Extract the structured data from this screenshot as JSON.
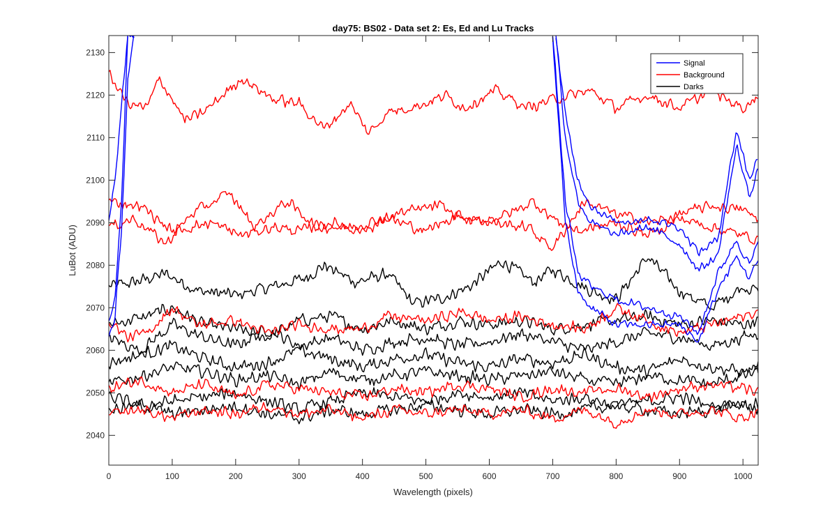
{
  "chart_data": {
    "type": "line",
    "title": "day75: BS02 - Data set 2: Es, Ed and Lu Tracks",
    "xlabel": "Wavelength (pixels)",
    "ylabel": "LuBot (ADU)",
    "xlim": [
      0,
      1024
    ],
    "ylim": [
      2033,
      2134
    ],
    "xticks": [
      0,
      100,
      200,
      300,
      400,
      500,
      600,
      700,
      800,
      900,
      1000
    ],
    "yticks": [
      2040,
      2050,
      2060,
      2070,
      2080,
      2090,
      2100,
      2110,
      2120,
      2130
    ],
    "grid": false,
    "legend_position": "top-right",
    "legend": [
      {
        "name": "Signal",
        "color": "#0000ff"
      },
      {
        "name": "Background",
        "color": "#ff0000"
      },
      {
        "name": "Darks",
        "color": "#000000"
      }
    ],
    "noise_amplitude": {
      "Background": 1.6,
      "Darks": 1.8,
      "Signal": 1.2
    },
    "series": [
      {
        "group": "Background",
        "color": "#ff0000",
        "x": [
          0,
          30,
          60,
          80,
          120,
          150,
          210,
          260,
          300,
          340,
          380,
          410,
          440,
          500,
          530,
          560,
          610,
          660,
          700,
          760,
          800,
          850,
          900,
          950,
          1000,
          1024
        ],
        "y": [
          2125,
          2118,
          2117,
          2124,
          2114,
          2116,
          2124,
          2119,
          2118,
          2112,
          2118,
          2111,
          2116,
          2118,
          2120,
          2117,
          2121,
          2117,
          2119,
          2121,
          2117,
          2120,
          2117,
          2121,
          2117,
          2120
        ]
      },
      {
        "group": "Background",
        "color": "#ff0000",
        "x": [
          0,
          40,
          90,
          130,
          190,
          230,
          280,
          330,
          380,
          440,
          500,
          550,
          600,
          660,
          700,
          750,
          800,
          860,
          900,
          950,
          1000,
          1024
        ],
        "y": [
          2089,
          2091,
          2085,
          2092,
          2097,
          2089,
          2095,
          2089,
          2089,
          2091,
          2088,
          2092,
          2090,
          2089,
          2084,
          2095,
          2092,
          2090,
          2092,
          2094,
          2093,
          2091
        ]
      },
      {
        "group": "Background",
        "color": "#ff0000",
        "x": [
          0,
          50,
          100,
          160,
          210,
          260,
          300,
          350,
          400,
          450,
          520,
          570,
          630,
          670,
          700,
          740,
          800,
          850,
          900,
          950,
          1000,
          1024
        ],
        "y": [
          2095,
          2094,
          2088,
          2090,
          2087,
          2089,
          2088,
          2090,
          2088,
          2092,
          2094,
          2090,
          2092,
          2095,
          2091,
          2088,
          2090,
          2087,
          2091,
          2089,
          2087,
          2086
        ]
      },
      {
        "group": "Background",
        "color": "#ff0000",
        "x": [
          0,
          30,
          60,
          100,
          140,
          200,
          250,
          300,
          360,
          400,
          440,
          500,
          560,
          600,
          650,
          700,
          750,
          800,
          850,
          900,
          950,
          1000,
          1024
        ],
        "y": [
          2067,
          2063,
          2064,
          2070,
          2066,
          2067,
          2064,
          2066,
          2065,
          2065,
          2068,
          2067,
          2069,
          2067,
          2068,
          2066,
          2065,
          2070,
          2067,
          2064,
          2066,
          2068,
          2069
        ]
      },
      {
        "group": "Background",
        "color": "#ff0000",
        "x": [
          0,
          50,
          100,
          150,
          200,
          250,
          300,
          350,
          400,
          450,
          500,
          550,
          600,
          650,
          700,
          750,
          800,
          850,
          900,
          950,
          1000,
          1024
        ],
        "y": [
          2051,
          2053,
          2050,
          2052,
          2049,
          2052,
          2051,
          2050,
          2049,
          2051,
          2050,
          2052,
          2051,
          2049,
          2051,
          2050,
          2051,
          2049,
          2051,
          2052,
          2051,
          2050
        ]
      },
      {
        "group": "Background",
        "color": "#ff0000",
        "x": [
          0,
          50,
          100,
          150,
          200,
          250,
          300,
          350,
          400,
          450,
          500,
          550,
          600,
          650,
          700,
          750,
          800,
          850,
          900,
          950,
          1000,
          1024
        ],
        "y": [
          2045,
          2046,
          2044,
          2046,
          2045,
          2047,
          2045,
          2046,
          2044,
          2046,
          2045,
          2046,
          2045,
          2046,
          2044,
          2046,
          2043,
          2046,
          2045,
          2046,
          2044,
          2046
        ]
      },
      {
        "group": "Darks",
        "color": "#000000",
        "x": [
          0,
          40,
          90,
          140,
          200,
          260,
          310,
          340,
          390,
          440,
          480,
          520,
          570,
          620,
          670,
          700,
          760,
          800,
          850,
          900,
          950,
          1000,
          1024
        ],
        "y": [
          2075,
          2076,
          2078,
          2074,
          2073,
          2075,
          2077,
          2080,
          2076,
          2078,
          2071,
          2072,
          2075,
          2081,
          2076,
          2079,
          2074,
          2072,
          2082,
          2074,
          2070,
          2075,
          2074
        ]
      },
      {
        "group": "Darks",
        "color": "#000000",
        "x": [
          0,
          60,
          100,
          150,
          200,
          250,
          300,
          350,
          400,
          450,
          500,
          550,
          600,
          650,
          700,
          750,
          800,
          850,
          900,
          950,
          1000,
          1024
        ],
        "y": [
          2066,
          2068,
          2070,
          2066,
          2065,
          2063,
          2067,
          2068,
          2065,
          2067,
          2065,
          2067,
          2066,
          2067,
          2065,
          2066,
          2067,
          2068,
          2066,
          2067,
          2066,
          2067
        ]
      },
      {
        "group": "Darks",
        "color": "#000000",
        "x": [
          0,
          50,
          100,
          150,
          200,
          250,
          300,
          350,
          400,
          450,
          500,
          550,
          600,
          650,
          700,
          750,
          800,
          850,
          900,
          950,
          1000,
          1024
        ],
        "y": [
          2063,
          2060,
          2066,
          2063,
          2061,
          2065,
          2061,
          2063,
          2060,
          2062,
          2063,
          2061,
          2062,
          2064,
          2062,
          2060,
          2062,
          2064,
          2063,
          2061,
          2063,
          2064
        ]
      },
      {
        "group": "Darks",
        "color": "#000000",
        "x": [
          0,
          50,
          100,
          150,
          200,
          250,
          300,
          350,
          400,
          450,
          500,
          550,
          600,
          650,
          700,
          750,
          800,
          850,
          900,
          950,
          1000,
          1024
        ],
        "y": [
          2057,
          2059,
          2061,
          2058,
          2056,
          2057,
          2060,
          2058,
          2056,
          2058,
          2059,
          2057,
          2056,
          2058,
          2057,
          2059,
          2056,
          2055,
          2058,
          2056,
          2055,
          2056
        ]
      },
      {
        "group": "Darks",
        "color": "#000000",
        "x": [
          0,
          50,
          100,
          150,
          200,
          250,
          300,
          350,
          400,
          450,
          500,
          550,
          600,
          650,
          700,
          750,
          800,
          850,
          900,
          950,
          1000,
          1024
        ],
        "y": [
          2052,
          2054,
          2056,
          2055,
          2053,
          2054,
          2052,
          2055,
          2053,
          2054,
          2055,
          2054,
          2053,
          2054,
          2055,
          2053,
          2052,
          2054,
          2053,
          2052,
          2054,
          2055
        ]
      },
      {
        "group": "Darks",
        "color": "#000000",
        "x": [
          0,
          50,
          100,
          150,
          200,
          250,
          300,
          350,
          400,
          450,
          500,
          550,
          600,
          650,
          700,
          750,
          800,
          850,
          900,
          950,
          1000,
          1024
        ],
        "y": [
          2049,
          2047,
          2048,
          2049,
          2050,
          2048,
          2046,
          2048,
          2050,
          2049,
          2048,
          2050,
          2049,
          2050,
          2048,
          2049,
          2047,
          2048,
          2049,
          2047,
          2048,
          2047
        ]
      },
      {
        "group": "Darks",
        "color": "#000000",
        "x": [
          0,
          50,
          100,
          150,
          200,
          250,
          300,
          350,
          400,
          450,
          500,
          550,
          600,
          650,
          700,
          750,
          800,
          850,
          900,
          950,
          1000,
          1024
        ],
        "y": [
          2046,
          2047,
          2045,
          2046,
          2047,
          2045,
          2044,
          2046,
          2045,
          2046,
          2047,
          2046,
          2045,
          2046,
          2045,
          2046,
          2047,
          2046,
          2045,
          2046,
          2047,
          2046
        ]
      },
      {
        "group": "Signal",
        "color": "#0000ff",
        "x": [
          0,
          10,
          20,
          30,
          40
        ],
        "y": [
          2067,
          2072,
          2095,
          2134,
          2134
        ]
      },
      {
        "group": "Signal",
        "color": "#0000ff",
        "x": [
          0,
          10,
          20,
          30,
          40
        ],
        "y": [
          2063,
          2068,
          2088,
          2124,
          2134
        ]
      },
      {
        "group": "Signal",
        "color": "#0000ff",
        "x": [
          0,
          10,
          20,
          30,
          40
        ],
        "y": [
          2090,
          2100,
          2118,
          2134,
          2134
        ]
      },
      {
        "group": "Signal",
        "color": "#0000ff",
        "x": [
          705,
          720,
          740,
          760,
          800,
          850,
          900,
          930,
          960,
          990,
          1010,
          1024
        ],
        "y": [
          2134,
          2115,
          2100,
          2094,
          2090,
          2091,
          2089,
          2083,
          2086,
          2112,
          2100,
          2106
        ]
      },
      {
        "group": "Signal",
        "color": "#0000ff",
        "x": [
          705,
          720,
          740,
          760,
          800,
          850,
          900,
          930,
          960,
          990,
          1010,
          1024
        ],
        "y": [
          2134,
          2110,
          2095,
          2090,
          2087,
          2089,
          2085,
          2079,
          2082,
          2108,
          2096,
          2103
        ]
      },
      {
        "group": "Signal",
        "color": "#0000ff",
        "x": [
          700,
          720,
          740,
          760,
          800,
          850,
          900,
          930,
          960,
          990,
          1010,
          1024
        ],
        "y": [
          2134,
          2095,
          2078,
          2075,
          2072,
          2070,
          2068,
          2064,
          2078,
          2086,
          2080,
          2085
        ]
      },
      {
        "group": "Signal",
        "color": "#0000ff",
        "x": [
          700,
          720,
          740,
          760,
          800,
          850,
          900,
          930,
          960,
          990,
          1010,
          1024
        ],
        "y": [
          2134,
          2090,
          2074,
          2070,
          2066,
          2066,
          2066,
          2062,
          2074,
          2082,
          2077,
          2081
        ]
      }
    ]
  }
}
